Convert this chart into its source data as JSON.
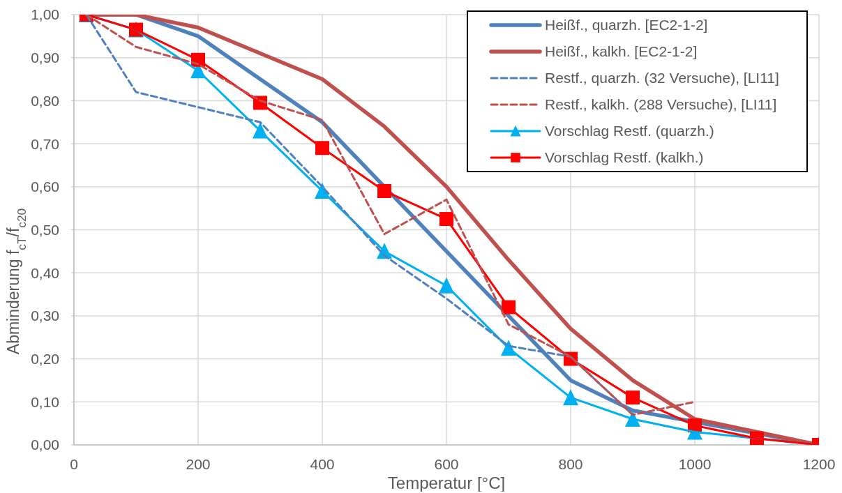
{
  "chart_data": {
    "type": "line",
    "xlabel": "Temperatur [°C]",
    "ylabel": "Abminderung  f$_{cT}$/f$_{c20}$",
    "x": [
      20,
      100,
      200,
      300,
      400,
      500,
      600,
      700,
      800,
      900,
      1000,
      1100,
      1200
    ],
    "series": [
      {
        "name": "Heißf., quarzh. [EC2-1-2]",
        "color": "#4f81bd",
        "values": [
          1.0,
          1.0,
          0.95,
          0.85,
          0.75,
          0.6,
          0.45,
          0.3,
          0.15,
          0.08,
          null,
          null,
          0.0
        ]
      },
      {
        "name": "Heißf., kalkh. [EC2-1-2]",
        "color": "#c0504d",
        "values": [
          1.0,
          1.0,
          0.97,
          0.91,
          0.85,
          0.74,
          0.6,
          0.43,
          0.27,
          0.15,
          0.06,
          null,
          0.0
        ]
      },
      {
        "name": "Restf., quarzh. (32 Versuche), [LI11]",
        "color": "#4f81bd",
        "line_style": "dashed",
        "values": [
          1.0,
          0.82,
          0.785,
          0.75,
          0.6,
          0.44,
          0.34,
          0.23,
          0.205,
          0.07,
          null,
          null,
          null
        ]
      },
      {
        "name": "Restf., kalkh. (288 Versuche), [LI11]",
        "color": "#c0504d",
        "line_style": "dashed",
        "values": [
          1.0,
          0.925,
          0.885,
          0.8,
          0.755,
          0.49,
          0.57,
          0.28,
          0.205,
          0.07,
          0.1,
          null,
          null
        ]
      },
      {
        "name": "Vorschlag Restf. (quarzh.)",
        "color": "#00b0f0",
        "marker": "triangle",
        "values": [
          1.0,
          0.965,
          0.87,
          0.73,
          0.59,
          0.45,
          0.37,
          0.225,
          0.11,
          0.06,
          0.03,
          null,
          0.0
        ]
      },
      {
        "name": "Vorschlag Restf. (kalkh.)",
        "color": "#ff0000",
        "marker": "square",
        "values": [
          1.0,
          0.965,
          0.895,
          0.795,
          0.69,
          0.59,
          0.525,
          0.32,
          0.2,
          0.11,
          0.045,
          0.015,
          0.0
        ]
      }
    ],
    "xlim": [
      0,
      1200
    ],
    "xticks": [
      0,
      200,
      400,
      600,
      800,
      1000,
      1200
    ],
    "ylim": [
      0,
      1
    ],
    "yticks": [
      {
        "value": 0,
        "label": "0,00"
      },
      {
        "value": 0.1,
        "label": "0,10"
      },
      {
        "value": 0.2,
        "label": "0,20"
      },
      {
        "value": 0.3,
        "label": "0,30"
      },
      {
        "value": 0.4,
        "label": "0,40"
      },
      {
        "value": 0.5,
        "label": "0,50"
      },
      {
        "value": 0.6,
        "label": "0,60"
      },
      {
        "value": 0.7,
        "label": "0,70"
      },
      {
        "value": 0.8,
        "label": "0,80"
      },
      {
        "value": 0.9,
        "label": "0,90"
      },
      {
        "value": 1,
        "label": "1,00"
      }
    ],
    "grid": true,
    "legend": "top right"
  }
}
